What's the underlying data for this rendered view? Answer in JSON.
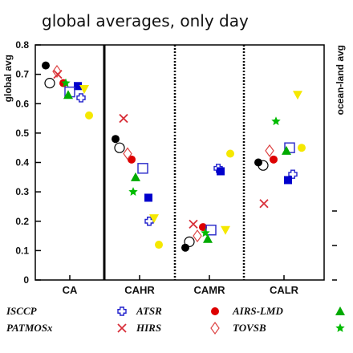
{
  "chart_data": {
    "type": "scatter",
    "title": "global averages, only day",
    "ylabel": "global avg",
    "right_ylabel": "ocean-land avg",
    "ylim": [
      0,
      0.8
    ],
    "yticks": [
      "0",
      "0.1",
      "0.2",
      "0.3",
      "0.4",
      "0.5",
      "0.6",
      "0.7",
      "0.8"
    ],
    "categories": [
      "CA",
      "CAHR",
      "CAMR",
      "CALR"
    ],
    "series": [
      {
        "name": "ISCCP",
        "marker": "filled-circle",
        "color": "#000000",
        "values": [
          0.73,
          0.48,
          0.11,
          0.4
        ]
      },
      {
        "name": "PATMOSx",
        "marker": "open-circle",
        "color": "#000000",
        "values": [
          0.67,
          0.45,
          0.13,
          0.39
        ]
      },
      {
        "name": "ATSR",
        "marker": "open-cross",
        "color": "#2222cc",
        "values": [
          0.62,
          0.2,
          0.38,
          0.36
        ]
      },
      {
        "name": "HIRS",
        "marker": "x",
        "color": "#d8303a",
        "values": [
          0.7,
          0.55,
          0.19,
          0.26
        ]
      },
      {
        "name": "AIRS-LMD",
        "marker": "filled-circle",
        "color": "#dd0000",
        "values": [
          0.67,
          0.41,
          0.18,
          0.41
        ]
      },
      {
        "name": "TOVSB",
        "marker": "open-diamond",
        "color": "#dd4444",
        "values": [
          0.71,
          0.43,
          0.15,
          0.44
        ]
      },
      {
        "name": "",
        "marker": "filled-square",
        "color": "#0000cc",
        "values": [
          0.66,
          0.28,
          0.37,
          0.34
        ]
      },
      {
        "name": "",
        "marker": "open-square",
        "color": "#3333cc",
        "values": [
          0.64,
          0.38,
          0.17,
          0.45
        ]
      },
      {
        "name": "",
        "marker": "filled-triangle",
        "color": "#00aa00",
        "values": [
          0.63,
          0.35,
          0.14,
          0.44
        ]
      },
      {
        "name": "",
        "marker": "star",
        "color": "#00bb00",
        "values": [
          0.67,
          0.3,
          0.16,
          0.54
        ]
      },
      {
        "name": "",
        "marker": "filled-circle",
        "color": "#f5e800",
        "values": [
          0.56,
          0.12,
          0.43,
          0.45
        ]
      },
      {
        "name": "",
        "marker": "down-triangle",
        "color": "#f5e800",
        "values": [
          0.65,
          0.21,
          0.17,
          0.63
        ]
      }
    ],
    "legend": [
      "ISCCP",
      "PATMOSx",
      "ATSR",
      "HIRS",
      "AIRS-LMD",
      "TOVSB"
    ],
    "grid": false
  }
}
